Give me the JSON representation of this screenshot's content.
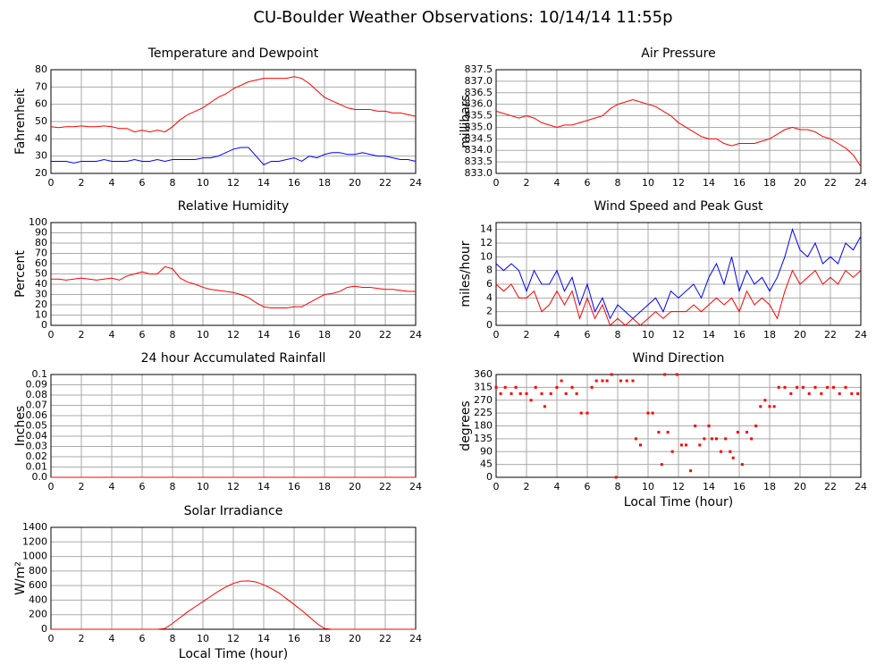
{
  "title": "CU-Boulder Weather Observations: 10/14/14 11:55p",
  "chart_data": [
    {
      "type": "line",
      "title": "Temperature and Dewpoint",
      "y_label": "Fahrenheit",
      "x": [
        0,
        0.5,
        1,
        1.5,
        2,
        2.5,
        3,
        3.5,
        4,
        4.5,
        5,
        5.5,
        6,
        6.5,
        7,
        7.5,
        8,
        8.5,
        9,
        9.5,
        10,
        10.5,
        11,
        11.5,
        12,
        12.5,
        13,
        13.5,
        14,
        14.5,
        15,
        15.5,
        16,
        16.5,
        17,
        17.5,
        18,
        18.5,
        19,
        19.5,
        20,
        20.5,
        21,
        21.5,
        22,
        22.5,
        23,
        23.5,
        24
      ],
      "series": [
        {
          "color": "#ff0000",
          "values": [
            47,
            46.5,
            47,
            47,
            47.5,
            47,
            47,
            47.5,
            47,
            46,
            46,
            44,
            45,
            44,
            45,
            44,
            47,
            51,
            54,
            56,
            58,
            61,
            64,
            66,
            69,
            71,
            73,
            74,
            75,
            75,
            75,
            75,
            76,
            75,
            72,
            68,
            64,
            62,
            60,
            58,
            57,
            57,
            57,
            56,
            56,
            55,
            55,
            54,
            53
          ]
        },
        {
          "color": "#0000ff",
          "values": [
            27,
            27,
            27,
            26,
            27,
            27,
            27,
            28,
            27,
            27,
            27,
            28,
            27,
            27,
            28,
            27,
            28,
            28,
            28,
            28,
            29,
            29,
            30,
            32,
            34,
            35,
            35,
            30,
            25,
            27,
            27,
            28,
            29,
            27,
            30,
            29,
            31,
            32,
            32,
            31,
            31,
            32,
            31,
            30,
            30,
            29,
            28,
            28,
            27
          ]
        }
      ],
      "xlim": [
        0,
        24
      ],
      "xticks": [
        0,
        2,
        4,
        6,
        8,
        10,
        12,
        14,
        16,
        18,
        20,
        22,
        24
      ],
      "ylim": [
        20,
        80
      ],
      "yticks": [
        20,
        30,
        40,
        50,
        60,
        70,
        80
      ],
      "grid": true
    },
    {
      "type": "line",
      "title": "Air Pressure",
      "y_label": "millibars",
      "x": [
        0,
        0.5,
        1,
        1.5,
        2,
        2.5,
        3,
        3.5,
        4,
        4.5,
        5,
        5.5,
        6,
        6.5,
        7,
        7.5,
        8,
        8.5,
        9,
        9.5,
        10,
        10.5,
        11,
        11.5,
        12,
        12.5,
        13,
        13.5,
        14,
        14.5,
        15,
        15.5,
        16,
        16.5,
        17,
        17.5,
        18,
        18.5,
        19,
        19.5,
        20,
        20.5,
        21,
        21.5,
        22,
        22.5,
        23,
        23.5,
        24
      ],
      "series": [
        {
          "color": "#ff0000",
          "values": [
            835.7,
            835.6,
            835.5,
            835.4,
            835.5,
            835.4,
            835.2,
            835.1,
            835.0,
            835.1,
            835.1,
            835.2,
            835.3,
            835.4,
            835.5,
            835.8,
            836.0,
            836.1,
            836.2,
            836.1,
            836.0,
            835.9,
            835.7,
            835.5,
            835.2,
            835.0,
            834.8,
            834.6,
            834.5,
            834.5,
            834.3,
            834.2,
            834.3,
            834.3,
            834.3,
            834.4,
            834.5,
            834.7,
            834.9,
            835.0,
            834.9,
            834.9,
            834.8,
            834.6,
            834.5,
            834.3,
            834.1,
            833.8,
            833.3
          ]
        }
      ],
      "xlim": [
        0,
        24
      ],
      "xticks": [
        0,
        2,
        4,
        6,
        8,
        10,
        12,
        14,
        16,
        18,
        20,
        22,
        24
      ],
      "ylim": [
        833,
        837.5
      ],
      "yticks": [
        {
          "value": 833,
          "label": "833.0"
        },
        833.5,
        {
          "value": 834,
          "label": "834.0"
        },
        834.5,
        {
          "value": 835,
          "label": "835.0"
        },
        835.5,
        {
          "value": 836,
          "label": "836.0"
        },
        836.5,
        {
          "value": 837,
          "label": "837.0"
        },
        837.5
      ],
      "grid": true
    },
    {
      "type": "line",
      "title": "Relative Humidity",
      "y_label": "Percent",
      "x": [
        0,
        0.5,
        1,
        1.5,
        2,
        2.5,
        3,
        3.5,
        4,
        4.5,
        5,
        5.5,
        6,
        6.5,
        7,
        7.5,
        8,
        8.5,
        9,
        9.5,
        10,
        10.5,
        11,
        11.5,
        12,
        12.5,
        13,
        13.5,
        14,
        14.5,
        15,
        15.5,
        16,
        16.5,
        17,
        17.5,
        18,
        18.5,
        19,
        19.5,
        20,
        20.5,
        21,
        21.5,
        22,
        22.5,
        23,
        23.5,
        24
      ],
      "series": [
        {
          "color": "#ff0000",
          "values": [
            45,
            45,
            44,
            45,
            46,
            45,
            44,
            45,
            46,
            44,
            48,
            50,
            52,
            50,
            50,
            57,
            55,
            46,
            42,
            40,
            37,
            35,
            34,
            33,
            32,
            30,
            27,
            22,
            18,
            17,
            17,
            17,
            18,
            18,
            22,
            26,
            30,
            31,
            33,
            37,
            38,
            37,
            37,
            36,
            35,
            35,
            34,
            33,
            33
          ]
        }
      ],
      "xlim": [
        0,
        24
      ],
      "xticks": [
        0,
        2,
        4,
        6,
        8,
        10,
        12,
        14,
        16,
        18,
        20,
        22,
        24
      ],
      "ylim": [
        0,
        100
      ],
      "yticks": [
        0,
        10,
        20,
        30,
        40,
        50,
        60,
        70,
        80,
        90,
        100
      ],
      "grid": true
    },
    {
      "type": "line",
      "title": "Wind Speed and Peak Gust",
      "y_label": "miles/hour",
      "x": [
        0,
        0.5,
        1,
        1.5,
        2,
        2.5,
        3,
        3.5,
        4,
        4.5,
        5,
        5.5,
        6,
        6.5,
        7,
        7.5,
        8,
        8.5,
        9,
        9.5,
        10,
        10.5,
        11,
        11.5,
        12,
        12.5,
        13,
        13.5,
        14,
        14.5,
        15,
        15.5,
        16,
        16.5,
        17,
        17.5,
        18,
        18.5,
        19,
        19.5,
        20,
        20.5,
        21,
        21.5,
        22,
        22.5,
        23,
        23.5,
        24
      ],
      "series": [
        {
          "color": "#0000ff",
          "values": [
            9,
            8,
            9,
            8,
            5,
            8,
            6,
            6,
            8,
            5,
            7,
            3,
            6,
            2,
            4,
            1,
            3,
            2,
            1,
            2,
            3,
            4,
            2,
            5,
            4,
            5,
            6,
            4,
            7,
            9,
            6,
            10,
            5,
            8,
            6,
            7,
            5,
            7,
            10,
            14,
            11,
            10,
            12,
            9,
            10,
            9,
            12,
            11,
            13
          ]
        },
        {
          "color": "#ff0000",
          "values": [
            6,
            5,
            6,
            4,
            4,
            5,
            2,
            3,
            5,
            3,
            5,
            1,
            4,
            1,
            3,
            0,
            1,
            0,
            1,
            0,
            1,
            2,
            1,
            2,
            2,
            2,
            3,
            2,
            3,
            4,
            3,
            4,
            2,
            5,
            3,
            4,
            3,
            1,
            5,
            8,
            6,
            7,
            8,
            6,
            7,
            6,
            8,
            7,
            8
          ]
        }
      ],
      "xlim": [
        0,
        24
      ],
      "xticks": [
        0,
        2,
        4,
        6,
        8,
        10,
        12,
        14,
        16,
        18,
        20,
        22,
        24
      ],
      "ylim": [
        0,
        15
      ],
      "yticks": [
        0,
        2,
        4,
        6,
        8,
        10,
        12,
        14
      ],
      "grid": true
    },
    {
      "type": "line",
      "title": "24 hour Accumulated Rainfall",
      "y_label": "Inches",
      "x": [
        0,
        24
      ],
      "series": [
        {
          "color": "#ff0000",
          "values": [
            0,
            0
          ]
        }
      ],
      "xlim": [
        0,
        24
      ],
      "xticks": [
        0,
        2,
        4,
        6,
        8,
        10,
        12,
        14,
        16,
        18,
        20,
        22,
        24
      ],
      "ylim": [
        0,
        0.1
      ],
      "yticks": [
        {
          "value": 0,
          "label": "0.0"
        },
        0.01,
        0.02,
        0.03,
        0.04,
        0.05,
        0.06,
        0.07,
        0.08,
        0.09,
        0.1
      ],
      "grid": true
    },
    {
      "type": "scatter",
      "title": "Wind Direction",
      "y_label": "degrees",
      "x_label": "Local Time (hour)",
      "x": [
        0,
        0.3,
        0.6,
        1,
        1.3,
        1.6,
        2,
        2.3,
        2.6,
        3,
        3.2,
        3.6,
        4,
        4.3,
        4.6,
        5,
        5.3,
        5.6,
        6,
        6.3,
        6.6,
        7,
        7.3,
        7.6,
        7.9,
        8.2,
        8.6,
        9,
        9.2,
        9.5,
        10,
        10.3,
        10.7,
        10.9,
        11.1,
        11.3,
        11.6,
        11.9,
        12.2,
        12.5,
        12.8,
        13.1,
        13.4,
        13.7,
        14,
        14.2,
        14.5,
        14.8,
        15.1,
        15.4,
        15.6,
        15.9,
        16.2,
        16.5,
        16.8,
        17.1,
        17.4,
        17.7,
        18,
        18.3,
        18.6,
        19,
        19.4,
        19.8,
        20.2,
        20.6,
        21,
        21.4,
        21.8,
        22.2,
        22.6,
        23,
        23.4,
        23.8
      ],
      "series": [
        {
          "color": "#ff0000",
          "values": [
            315,
            293,
            315,
            293,
            315,
            293,
            293,
            270,
            315,
            293,
            248,
            293,
            315,
            338,
            293,
            315,
            293,
            225,
            225,
            315,
            338,
            338,
            338,
            360,
            0,
            338,
            338,
            338,
            135,
            113,
            225,
            225,
            158,
            45,
            360,
            158,
            90,
            360,
            113,
            113,
            23,
            180,
            113,
            135,
            180,
            135,
            135,
            90,
            135,
            90,
            68,
            158,
            45,
            158,
            135,
            180,
            248,
            270,
            248,
            248,
            315,
            315,
            293,
            315,
            315,
            293,
            315,
            293,
            315,
            315,
            293,
            315,
            293,
            293
          ]
        }
      ],
      "xlim": [
        0,
        24
      ],
      "xticks": [
        0,
        2,
        4,
        6,
        8,
        10,
        12,
        14,
        16,
        18,
        20,
        22,
        24
      ],
      "ylim": [
        0,
        360
      ],
      "yticks": [
        0,
        45,
        90,
        135,
        180,
        225,
        270,
        315,
        360
      ],
      "grid": true
    },
    {
      "type": "line",
      "title": "Solar Irradiance",
      "y_label": "W/m²",
      "x_label": "Local Time (hour)",
      "x": [
        0,
        0.5,
        1,
        1.5,
        2,
        2.5,
        3,
        3.5,
        4,
        4.5,
        5,
        5.5,
        6,
        6.5,
        7,
        7.5,
        8,
        8.5,
        9,
        9.5,
        10,
        10.5,
        11,
        11.5,
        12,
        12.5,
        13,
        13.5,
        14,
        14.5,
        15,
        15.5,
        16,
        16.5,
        17,
        17.5,
        18,
        18.5,
        19,
        19.5,
        20,
        20.5,
        21,
        21.5,
        22,
        22.5,
        23,
        23.5,
        24
      ],
      "series": [
        {
          "color": "#ff0000",
          "values": [
            0,
            0,
            0,
            0,
            0,
            0,
            0,
            0,
            0,
            0,
            0,
            0,
            0,
            0,
            0,
            10,
            80,
            160,
            240,
            310,
            380,
            450,
            520,
            580,
            630,
            660,
            665,
            650,
            610,
            560,
            500,
            420,
            340,
            260,
            170,
            80,
            10,
            0,
            0,
            0,
            0,
            0,
            0,
            0,
            0,
            0,
            0,
            0,
            0
          ]
        }
      ],
      "xlim": [
        0,
        24
      ],
      "xticks": [
        0,
        2,
        4,
        6,
        8,
        10,
        12,
        14,
        16,
        18,
        20,
        22,
        24
      ],
      "ylim": [
        0,
        1400
      ],
      "yticks": [
        0,
        200,
        400,
        600,
        800,
        1000,
        1200,
        1400
      ],
      "grid": true
    }
  ]
}
